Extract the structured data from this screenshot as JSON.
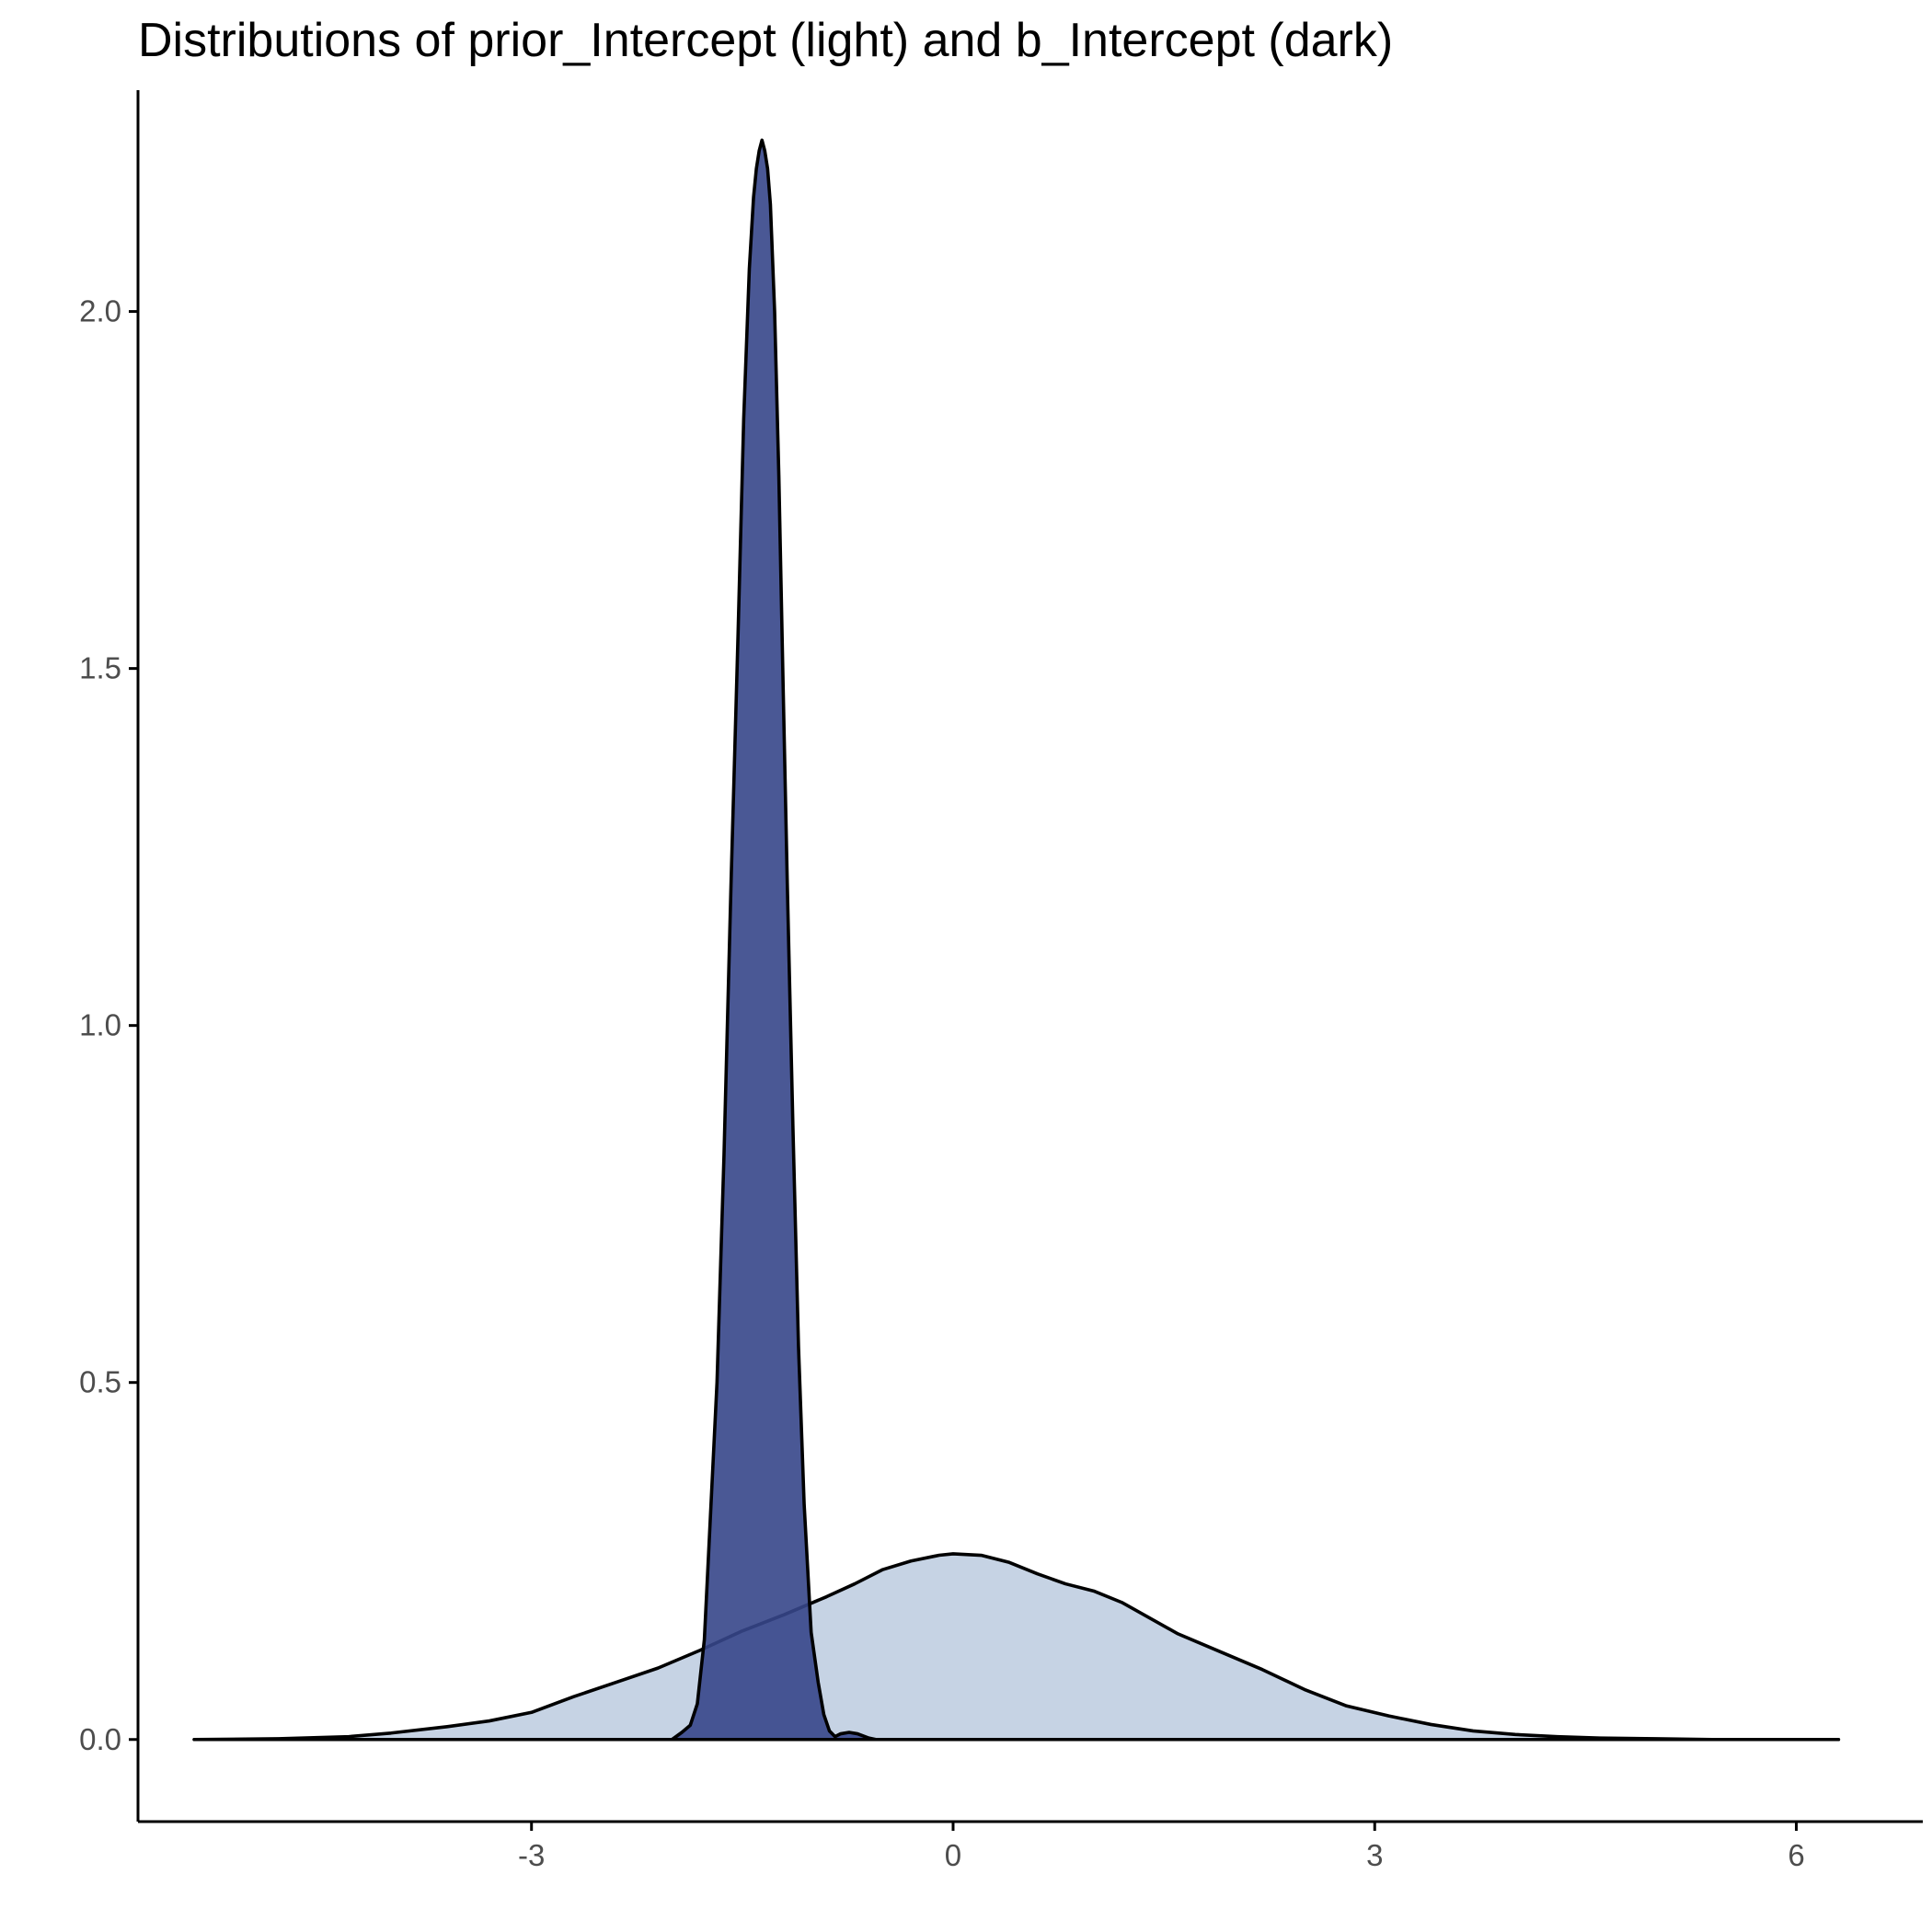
{
  "chart_data": {
    "type": "area",
    "title": "Distributions of prior_Intercept (light) and b_Intercept (dark)",
    "xlabel": "",
    "ylabel": "",
    "xlim": [
      -5.8,
      6.9
    ],
    "ylim": [
      -0.115,
      2.31
    ],
    "x_ticks": [
      -3,
      0,
      3,
      6
    ],
    "x_tick_labels": [
      "-3",
      "0",
      "3",
      "6"
    ],
    "y_ticks": [
      0.0,
      0.5,
      1.0,
      1.5,
      2.0
    ],
    "y_tick_labels": [
      "0.0",
      "0.5",
      "1.0",
      "1.5",
      "2.0"
    ],
    "grid": false,
    "legend": "none",
    "series": [
      {
        "fill": "#c6d3e4",
        "opacity": 1,
        "x": [
          -5.4,
          -4.8,
          -4.3,
          -4.0,
          -3.6,
          -3.3,
          -3.0,
          -2.7,
          -2.4,
          -2.1,
          -1.8,
          -1.5,
          -1.2,
          -0.9,
          -0.7,
          -0.5,
          -0.3,
          -0.1,
          0.0,
          0.2,
          0.4,
          0.6,
          0.8,
          1.0,
          1.2,
          1.4,
          1.6,
          1.9,
          2.2,
          2.5,
          2.8,
          3.1,
          3.4,
          3.7,
          4.0,
          4.3,
          4.6,
          5.0,
          5.4,
          5.8,
          6.3
        ],
        "y": [
          0.0,
          0.001,
          0.004,
          0.009,
          0.018,
          0.026,
          0.038,
          0.06,
          0.08,
          0.1,
          0.125,
          0.152,
          0.175,
          0.2,
          0.218,
          0.238,
          0.25,
          0.258,
          0.26,
          0.258,
          0.248,
          0.232,
          0.218,
          0.208,
          0.192,
          0.17,
          0.148,
          0.123,
          0.098,
          0.07,
          0.047,
          0.033,
          0.021,
          0.012,
          0.007,
          0.004,
          0.002,
          0.001,
          0.0,
          0.0,
          0.0
        ]
      },
      {
        "fill": "#364689",
        "opacity": 0.9,
        "x": [
          -5.4,
          -2.2,
          -2.0,
          -1.93,
          -1.87,
          -1.82,
          -1.77,
          -1.73,
          -1.68,
          -1.63,
          -1.58,
          -1.53,
          -1.49,
          -1.45,
          -1.42,
          -1.4,
          -1.38,
          -1.36,
          -1.34,
          -1.32,
          -1.3,
          -1.27,
          -1.24,
          -1.21,
          -1.18,
          -1.14,
          -1.1,
          -1.06,
          -1.01,
          -0.96,
          -0.92,
          -0.88,
          -0.84,
          -0.8,
          -0.74,
          -0.68,
          -0.6,
          -0.55,
          6.3
        ],
        "y": [
          0.0,
          0.0,
          0.0,
          0.01,
          0.02,
          0.05,
          0.14,
          0.3,
          0.5,
          0.82,
          1.2,
          1.55,
          1.85,
          2.06,
          2.16,
          2.2,
          2.225,
          2.24,
          2.225,
          2.2,
          2.15,
          2.0,
          1.77,
          1.48,
          1.2,
          0.86,
          0.55,
          0.33,
          0.15,
          0.08,
          0.035,
          0.012,
          0.004,
          0.008,
          0.01,
          0.008,
          0.002,
          0.0,
          0.0
        ]
      }
    ]
  }
}
